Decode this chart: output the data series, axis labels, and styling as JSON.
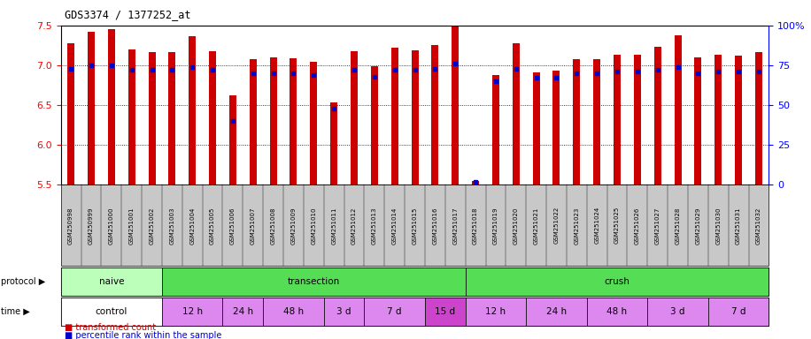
{
  "title": "GDS3374 / 1377252_at",
  "samples": [
    "GSM250998",
    "GSM250999",
    "GSM251000",
    "GSM251001",
    "GSM251002",
    "GSM251003",
    "GSM251004",
    "GSM251005",
    "GSM251006",
    "GSM251007",
    "GSM251008",
    "GSM251009",
    "GSM251010",
    "GSM251011",
    "GSM251012",
    "GSM251013",
    "GSM251014",
    "GSM251015",
    "GSM251016",
    "GSM251017",
    "GSM251018",
    "GSM251019",
    "GSM251020",
    "GSM251021",
    "GSM251022",
    "GSM251023",
    "GSM251024",
    "GSM251025",
    "GSM251026",
    "GSM251027",
    "GSM251028",
    "GSM251029",
    "GSM251030",
    "GSM251031",
    "GSM251032"
  ],
  "bar_values": [
    7.28,
    7.42,
    7.45,
    7.2,
    7.17,
    7.17,
    7.37,
    7.18,
    6.62,
    7.08,
    7.1,
    7.09,
    7.04,
    6.53,
    7.18,
    6.99,
    7.22,
    7.19,
    7.25,
    7.5,
    5.55,
    6.88,
    7.28,
    6.91,
    6.93,
    7.08,
    7.08,
    7.13,
    7.13,
    7.23,
    7.38,
    7.1,
    7.13,
    7.12,
    7.16
  ],
  "percentile_values": [
    73,
    75,
    75,
    72,
    72,
    72,
    74,
    72,
    40,
    70,
    70,
    70,
    69,
    48,
    72,
    68,
    72,
    72,
    73,
    76,
    2,
    65,
    73,
    67,
    67,
    70,
    70,
    71,
    71,
    72,
    74,
    70,
    71,
    71,
    71
  ],
  "y_min": 5.5,
  "y_max": 7.5,
  "bar_color": "#cc0000",
  "percentile_color": "#0000cc",
  "bar_bottom": 5.5,
  "protocol_groups": [
    {
      "label": "naive",
      "start": 0,
      "end": 4,
      "color": "#bbffbb"
    },
    {
      "label": "transection",
      "start": 5,
      "end": 19,
      "color": "#55dd55"
    },
    {
      "label": "crush",
      "start": 20,
      "end": 34,
      "color": "#55dd55"
    }
  ],
  "time_groups": [
    {
      "label": "control",
      "start": 0,
      "end": 4,
      "color": "#ffffff"
    },
    {
      "label": "12 h",
      "start": 5,
      "end": 7,
      "color": "#dd88ee"
    },
    {
      "label": "24 h",
      "start": 8,
      "end": 9,
      "color": "#dd88ee"
    },
    {
      "label": "48 h",
      "start": 10,
      "end": 12,
      "color": "#dd88ee"
    },
    {
      "label": "3 d",
      "start": 13,
      "end": 14,
      "color": "#dd88ee"
    },
    {
      "label": "7 d",
      "start": 15,
      "end": 17,
      "color": "#dd88ee"
    },
    {
      "label": "15 d",
      "start": 18,
      "end": 19,
      "color": "#cc44cc"
    },
    {
      "label": "12 h",
      "start": 20,
      "end": 22,
      "color": "#dd88ee"
    },
    {
      "label": "24 h",
      "start": 23,
      "end": 25,
      "color": "#dd88ee"
    },
    {
      "label": "48 h",
      "start": 26,
      "end": 28,
      "color": "#dd88ee"
    },
    {
      "label": "3 d",
      "start": 29,
      "end": 31,
      "color": "#dd88ee"
    },
    {
      "label": "7 d",
      "start": 32,
      "end": 34,
      "color": "#dd88ee"
    }
  ],
  "protocol_row_label": "protocol",
  "time_row_label": "time",
  "legend_bar_label": "transformed count",
  "legend_pct_label": "percentile rank within the sample",
  "xlabels_bg_color": "#c8c8c8",
  "plot_bg_color": "#ffffff"
}
